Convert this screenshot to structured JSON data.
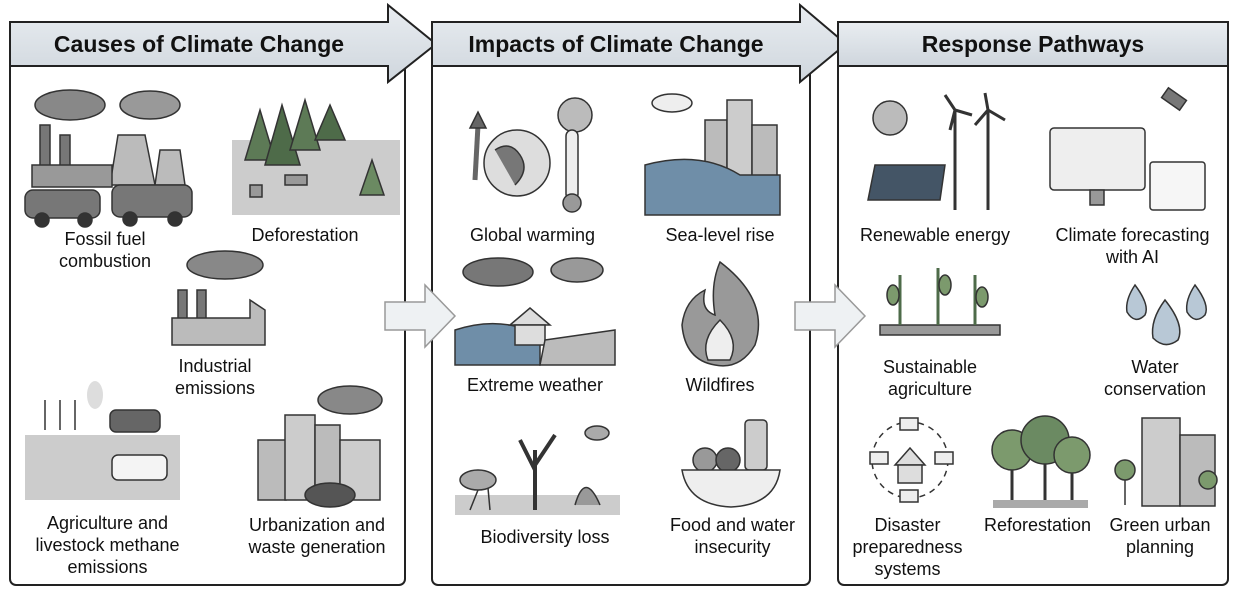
{
  "panels": [
    {
      "title": "Causes of Climate Change",
      "items": [
        "Fossil fuel combustion",
        "Deforestation",
        "Industrial emissions",
        "Agriculture and livestock methane emissions",
        "Urbanization and waste generation"
      ]
    },
    {
      "title": "Impacts of Climate Change",
      "items": [
        "Global warming",
        "Sea-level rise",
        "Extreme weather",
        "Wildfires",
        "Biodiversity loss",
        "Food and water insecurity"
      ]
    },
    {
      "title": "Response Pathways",
      "items": [
        "Renewable energy",
        "Climate forecasting with AI",
        "Sustainable agriculture",
        "Water conservation",
        "Disaster preparedness systems",
        "Reforestation",
        "Green urban planning"
      ]
    }
  ]
}
